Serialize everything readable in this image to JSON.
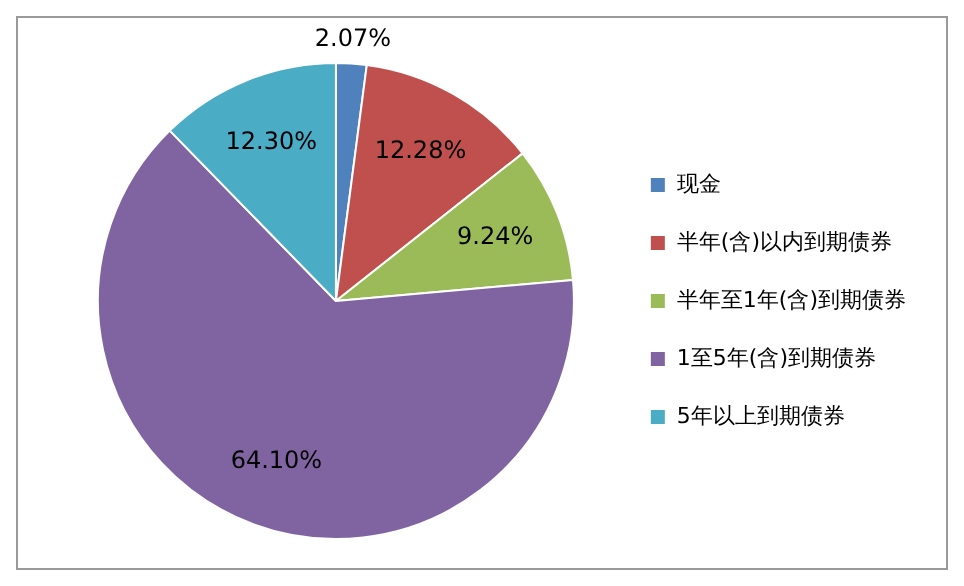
{
  "chart_data": {
    "type": "pie",
    "categories": [
      "现金",
      "半年(含)以内到期债券",
      "半年至1年(含)到期债券",
      "1至5年(含)到期债券",
      "5年以上到期债券"
    ],
    "values": [
      2.07,
      12.28,
      9.24,
      64.1,
      12.3
    ],
    "colors": [
      "#4f81bd",
      "#c0504d",
      "#9bbb59",
      "#8064a2",
      "#4bacc6"
    ],
    "value_labels": [
      "2.07%",
      "12.28%",
      "9.24%",
      "64.10%",
      "12.30%"
    ],
    "legend": "right"
  }
}
